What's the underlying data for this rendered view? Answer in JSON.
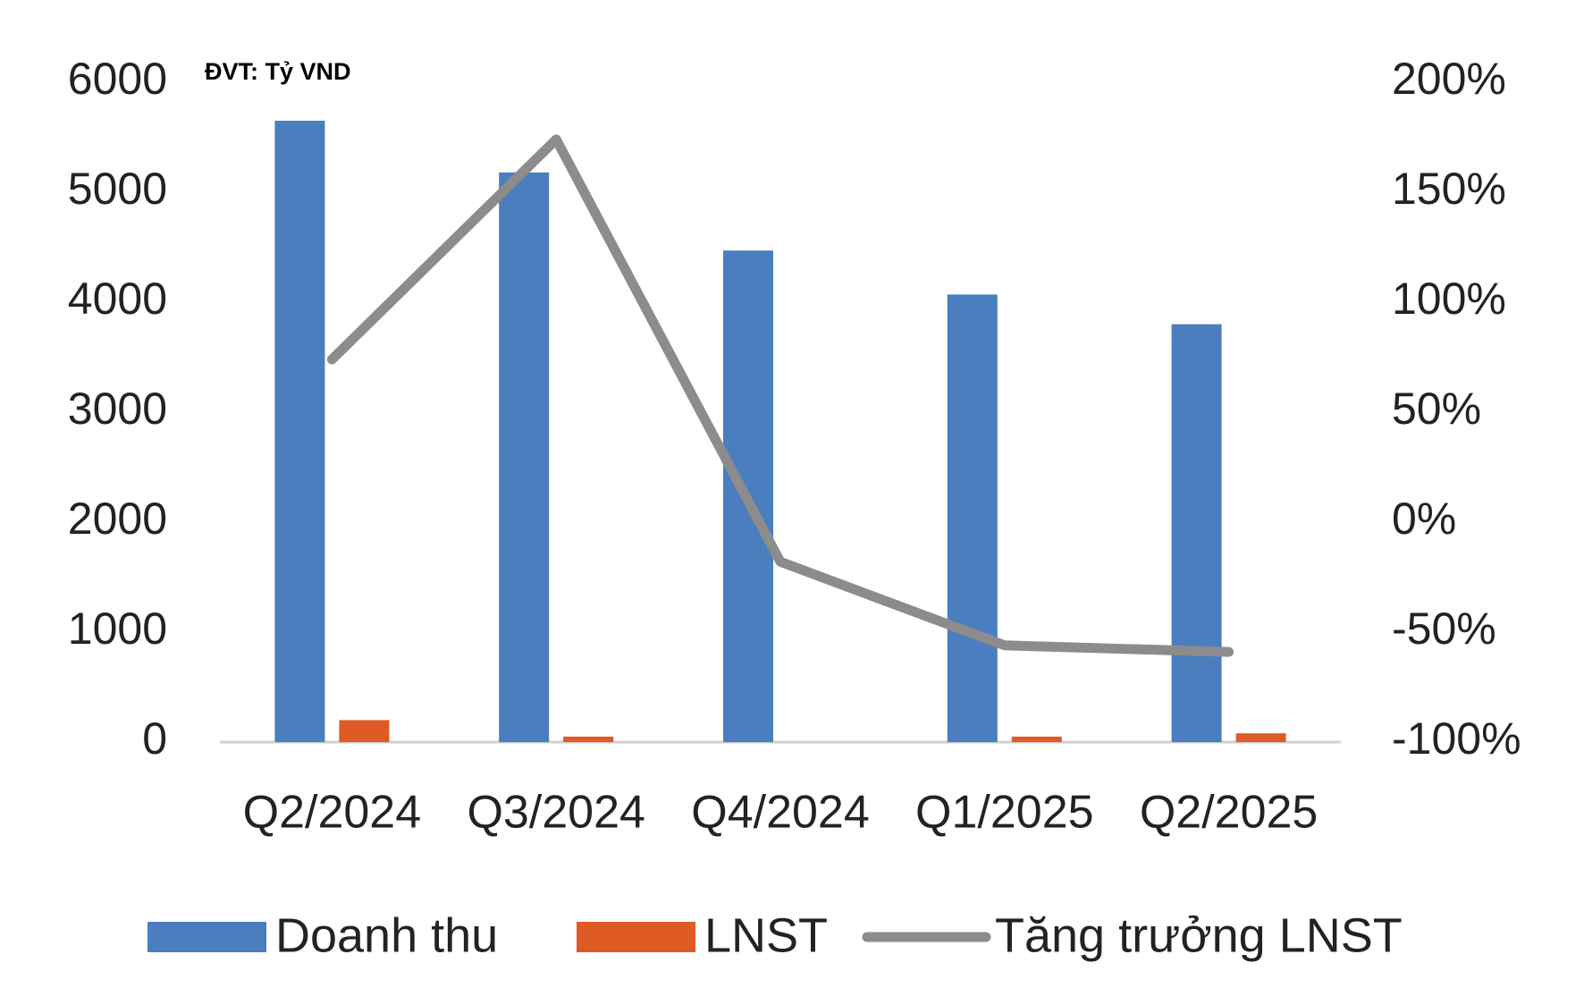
{
  "chart_data": {
    "type": "bar-line",
    "annotation": "ĐVT: Tỷ VND",
    "categories": [
      "Q2/2024",
      "Q3/2024",
      "Q4/2024",
      "Q1/2025",
      "Q2/2025"
    ],
    "series": [
      {
        "name": "Doanh thu",
        "type": "bar",
        "color": "#4a7ebf",
        "values": [
          5650,
          5180,
          4470,
          4070,
          3800
        ]
      },
      {
        "name": "LNST",
        "type": "bar",
        "color": "#e05a25",
        "values": [
          200,
          50,
          0,
          50,
          80
        ]
      },
      {
        "name": "Tăng trưởng LNST",
        "type": "line",
        "axis": "y2",
        "color": "#8c8c8c",
        "values": [
          74,
          174,
          -18,
          -56,
          -59
        ]
      }
    ],
    "ylim": [
      0,
      6000
    ],
    "yticks": [
      0,
      1000,
      2000,
      3000,
      4000,
      5000,
      6000
    ],
    "y2lim": [
      -100,
      200
    ],
    "y2ticks": [
      {
        "value": -100,
        "label": "-100%"
      },
      {
        "value": -50,
        "label": "-50%"
      },
      {
        "value": 0,
        "label": "0%"
      },
      {
        "value": 50,
        "label": "50%"
      },
      {
        "value": 100,
        "label": "100%"
      },
      {
        "value": 150,
        "label": "150%"
      },
      {
        "value": 200,
        "label": "200%"
      }
    ],
    "grid": false
  }
}
